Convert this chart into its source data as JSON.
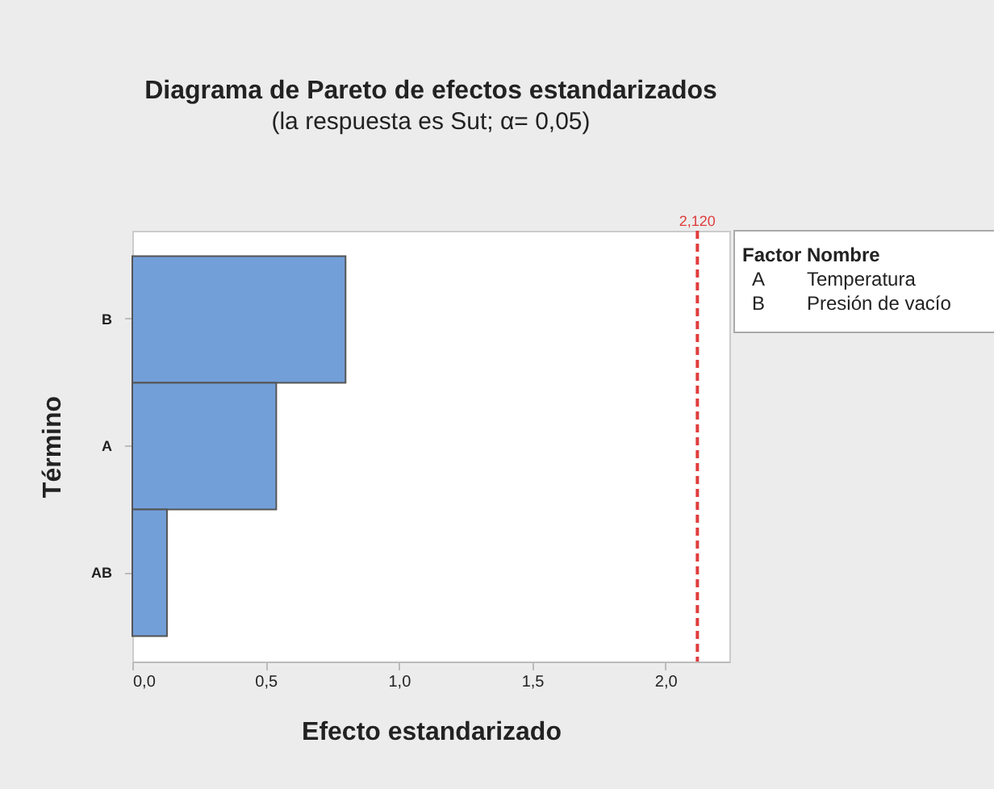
{
  "chart_data": {
    "type": "bar",
    "orientation": "horizontal",
    "title": "Diagrama de Pareto de efectos estandarizados",
    "subtitle": "(la respuesta es Sut; α= 0,05)",
    "xlabel": "Efecto estandarizado",
    "ylabel": "Término",
    "categories": [
      "B",
      "A",
      "AB"
    ],
    "values": [
      0.8,
      0.54,
      0.13
    ],
    "color": "#739fd9",
    "xlim": [
      0,
      2.24
    ],
    "xticks": [
      {
        "value": 0,
        "label": "0,0"
      },
      {
        "value": 0.5,
        "label": "0,5"
      },
      {
        "value": 1,
        "label": "1,0"
      },
      {
        "value": 1.5,
        "label": "1,5"
      },
      {
        "value": 2,
        "label": "2,0"
      }
    ],
    "ref_lines": [
      {
        "axis": "x",
        "value": 2.12,
        "label": "2,120",
        "color": "#e03c3c",
        "line_style": "dashed"
      }
    ],
    "annotations": [
      "Factor",
      "Nombre",
      "A",
      "Temperatura",
      "B",
      "Presión de vacío"
    ]
  }
}
